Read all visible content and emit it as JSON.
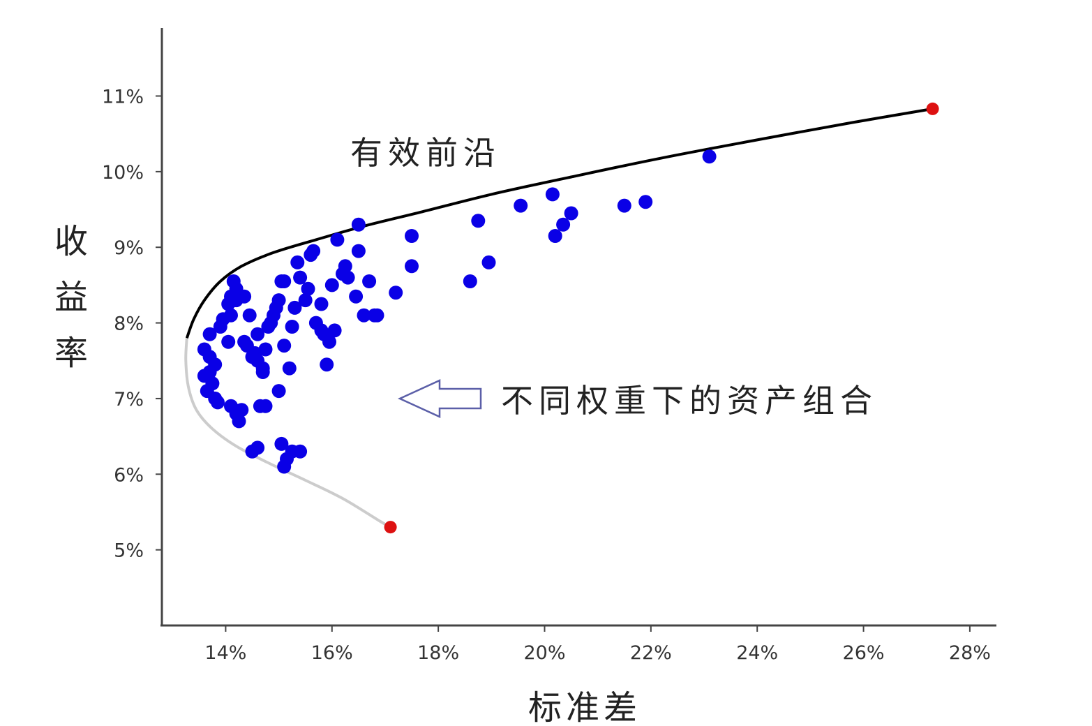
{
  "chart_data": {
    "type": "scatter",
    "title": "",
    "xlabel": "标准差",
    "ylabel": "收益率",
    "xlim": [
      12.8,
      28.5
    ],
    "ylim": [
      4.0,
      11.9
    ],
    "x_ticks": [
      14,
      16,
      18,
      20,
      22,
      24,
      26,
      28
    ],
    "x_tick_labels": [
      "14%",
      "16%",
      "18%",
      "20%",
      "22%",
      "24%",
      "26%",
      "28%"
    ],
    "y_ticks": [
      5,
      6,
      7,
      8,
      9,
      10,
      11
    ],
    "y_tick_labels": [
      "5%",
      "6%",
      "7%",
      "8%",
      "9%",
      "10%",
      "11%"
    ],
    "grid": false,
    "legend": "none",
    "colors": {
      "portfolios": "#0a00e6",
      "frontier": "#000000",
      "inefficient": "#cccccc",
      "endpoints": "#dd1111",
      "arrow": "#5b5fa8"
    },
    "annotations": {
      "frontier_label": "有效前沿",
      "portfolios_label": "不同权重下的资产组合"
    },
    "efficient_frontier": {
      "x": [
        13.27,
        13.4,
        13.6,
        13.9,
        14.3,
        14.9,
        15.7,
        16.6,
        17.7,
        19.0,
        20.5,
        22.2,
        24.0,
        25.8,
        27.3
      ],
      "y": [
        7.8,
        8.05,
        8.3,
        8.55,
        8.75,
        8.93,
        9.1,
        9.28,
        9.47,
        9.7,
        9.93,
        10.18,
        10.42,
        10.65,
        10.83
      ]
    },
    "inefficient_frontier": {
      "x": [
        13.27,
        13.25,
        13.3,
        13.45,
        13.75,
        14.2,
        14.8,
        15.5,
        16.2,
        16.9,
        17.1
      ],
      "y": [
        7.8,
        7.5,
        7.15,
        6.85,
        6.6,
        6.37,
        6.15,
        5.92,
        5.68,
        5.38,
        5.3
      ]
    },
    "endpoints": {
      "x": [
        17.1,
        27.3
      ],
      "y": [
        5.3,
        10.83
      ]
    },
    "series": [
      {
        "x": [
          13.6,
          13.7,
          13.8,
          13.7,
          13.6,
          13.75,
          13.65,
          13.8,
          13.7,
          13.9,
          13.95,
          14.05,
          14.1,
          14.15,
          14.1,
          13.85,
          14.2,
          14.25,
          14.35,
          14.4,
          14.55,
          14.6,
          14.7,
          14.75,
          14.8,
          14.85,
          14.9,
          14.95,
          15.0,
          15.05,
          15.1,
          14.6,
          14.7,
          14.5,
          14.45,
          14.35,
          14.2,
          14.05,
          14.1,
          14.2,
          14.3,
          14.5,
          14.65,
          14.75,
          15.0,
          15.1,
          15.2,
          15.25,
          15.3,
          15.35,
          15.4,
          15.5,
          15.55,
          15.6,
          15.65,
          15.7,
          15.8,
          15.85,
          15.9,
          15.95,
          16.0,
          16.05,
          16.1,
          16.2,
          16.25,
          16.3,
          16.45,
          16.5,
          16.5,
          16.6,
          16.7,
          16.85,
          16.8,
          17.2,
          17.5,
          17.5,
          18.6,
          18.75,
          18.95,
          19.55,
          20.15,
          20.2,
          20.35,
          20.5,
          21.5,
          21.9,
          23.1,
          14.6,
          15.05,
          15.15,
          15.25,
          15.4,
          15.1,
          15.8
        ],
        "y": [
          7.65,
          7.55,
          7.45,
          7.35,
          7.3,
          7.2,
          7.1,
          7.0,
          7.85,
          7.95,
          8.05,
          8.25,
          8.35,
          8.55,
          6.9,
          6.95,
          6.8,
          6.7,
          7.75,
          7.7,
          7.6,
          7.5,
          7.4,
          7.65,
          7.95,
          8.0,
          8.1,
          8.2,
          8.3,
          8.55,
          8.55,
          7.85,
          7.35,
          7.55,
          8.1,
          8.35,
          8.45,
          7.75,
          8.1,
          8.3,
          6.85,
          6.3,
          6.9,
          6.9,
          7.1,
          7.7,
          7.4,
          7.95,
          8.2,
          8.8,
          8.6,
          8.3,
          8.45,
          8.9,
          8.95,
          8.0,
          8.25,
          7.85,
          7.45,
          7.75,
          8.5,
          7.9,
          9.1,
          8.65,
          8.75,
          8.6,
          8.35,
          8.95,
          9.3,
          8.1,
          8.55,
          8.1,
          8.1,
          8.4,
          8.75,
          9.15,
          8.55,
          9.35,
          8.8,
          9.55,
          9.7,
          9.15,
          9.3,
          9.45,
          9.55,
          9.6,
          10.2,
          6.35,
          6.4,
          6.2,
          6.3,
          6.3,
          6.1,
          7.9
        ]
      }
    ]
  }
}
